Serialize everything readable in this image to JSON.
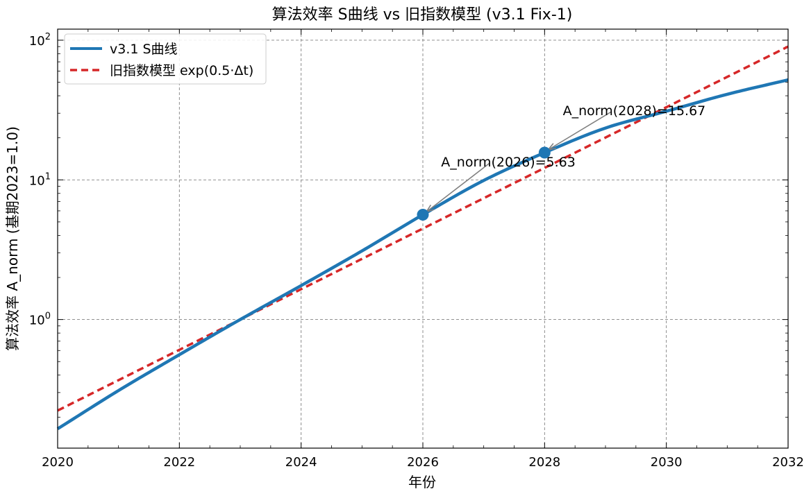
{
  "chart_data": {
    "type": "line",
    "title": "算法效率 S曲线 vs 旧指数模型 (v3.1 Fix-1)",
    "xlabel": "年份",
    "ylabel": "算法效率 A_norm (基期2023=1.0)",
    "xlim": [
      2020,
      2032
    ],
    "ylim": [
      0.12,
      120
    ],
    "yscale": "log",
    "xticks": [
      "2020",
      "2022",
      "2024",
      "2026",
      "2028",
      "2030",
      "2032"
    ],
    "yticks": [
      "10^0",
      "10^1",
      "10^2"
    ],
    "ytick_base": "10",
    "ytick_exponents": [
      "0",
      "1",
      "2"
    ],
    "grid": true,
    "legend_position": "upper-left",
    "series": [
      {
        "name": "v3.1 S曲线",
        "color": "#1f77b4",
        "style": "solid",
        "x": [
          2020,
          2021,
          2022,
          2023,
          2024,
          2025,
          2026,
          2027,
          2028,
          2029,
          2030,
          2031,
          2032
        ],
        "y": [
          0.165,
          0.31,
          0.56,
          1.0,
          1.75,
          3.1,
          5.63,
          9.9,
          15.67,
          23.5,
          31.0,
          41.0,
          52.0
        ]
      },
      {
        "name": "旧指数模型 exp(0.5·Δt)",
        "color": "#d62728",
        "style": "dashed",
        "x": [
          2020,
          2021,
          2022,
          2023,
          2024,
          2025,
          2026,
          2027,
          2028,
          2029,
          2030,
          2031,
          2032
        ],
        "y": [
          0.223,
          0.368,
          0.607,
          1.0,
          1.649,
          2.718,
          4.482,
          7.389,
          12.18,
          20.09,
          33.12,
          54.6,
          90.02
        ]
      }
    ],
    "markers": [
      {
        "x": 2026,
        "y": 5.63,
        "label": "A_norm(2026)=5.63",
        "text_x": 2026.3,
        "text_y": 13.5
      },
      {
        "x": 2028,
        "y": 15.67,
        "label": "A_norm(2028)=15.67",
        "text_x": 2028.3,
        "text_y": 31.5
      }
    ]
  }
}
